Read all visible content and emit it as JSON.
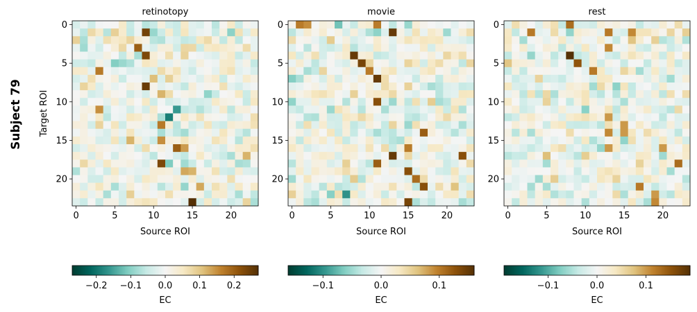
{
  "figure": {
    "subject_label": "Subject 79"
  },
  "colormap": {
    "name": "BrBG_r",
    "stops": [
      "#003c30",
      "#01665e",
      "#35978f",
      "#80cdc1",
      "#c7eae5",
      "#f5f5f5",
      "#f6e8c3",
      "#dfc27d",
      "#bf812d",
      "#8c510a",
      "#543005"
    ]
  },
  "chart_data": [
    {
      "type": "heatmap",
      "title": "retinotopy",
      "xlabel": "Source ROI",
      "ylabel": "Target ROI",
      "n": 24,
      "x_ticks": [
        0,
        5,
        10,
        15,
        20
      ],
      "y_ticks": [
        0,
        5,
        10,
        15,
        20
      ],
      "vmin": -0.27,
      "vmax": 0.27,
      "colorbar": {
        "label": "EC",
        "ticks": [
          -0.2,
          -0.1,
          0.0,
          0.1,
          0.2
        ],
        "tick_labels": [
          "−0.2",
          "−0.1",
          "0.0",
          "0.1",
          "0.2"
        ]
      },
      "strong_cells": [
        [
          1,
          9,
          0.24
        ],
        [
          3,
          8,
          0.2
        ],
        [
          4,
          9,
          0.23
        ],
        [
          6,
          3,
          0.17
        ],
        [
          7,
          10,
          0.11
        ],
        [
          8,
          9,
          0.25
        ],
        [
          9,
          11,
          0.12
        ],
        [
          11,
          3,
          0.15
        ],
        [
          11,
          13,
          -0.16
        ],
        [
          12,
          12,
          -0.19
        ],
        [
          13,
          11,
          0.17
        ],
        [
          15,
          7,
          0.12
        ],
        [
          15,
          11,
          0.15
        ],
        [
          16,
          13,
          0.2
        ],
        [
          16,
          14,
          0.14
        ],
        [
          17,
          22,
          0.12
        ],
        [
          18,
          11,
          0.23
        ],
        [
          19,
          14,
          0.13
        ],
        [
          19,
          15,
          0.12
        ],
        [
          21,
          16,
          0.13
        ],
        [
          23,
          15,
          0.27
        ]
      ]
    },
    {
      "type": "heatmap",
      "title": "movie",
      "xlabel": "Source ROI",
      "ylabel": "",
      "n": 24,
      "x_ticks": [
        0,
        5,
        10,
        15,
        20
      ],
      "y_ticks": [
        0,
        5,
        10,
        15,
        20
      ],
      "vmin": -0.16,
      "vmax": 0.16,
      "colorbar": {
        "label": "EC",
        "ticks": [
          -0.1,
          0.0,
          0.1
        ],
        "tick_labels": [
          "−0.1",
          "0.0",
          "0.1"
        ]
      },
      "strong_cells": [
        [
          0,
          1,
          0.1
        ],
        [
          0,
          2,
          0.09
        ],
        [
          0,
          6,
          -0.07
        ],
        [
          0,
          11,
          0.1
        ],
        [
          1,
          13,
          0.15
        ],
        [
          4,
          8,
          0.15
        ],
        [
          5,
          9,
          0.14
        ],
        [
          6,
          10,
          0.1
        ],
        [
          7,
          11,
          0.15
        ],
        [
          10,
          11,
          0.13
        ],
        [
          14,
          17,
          0.12
        ],
        [
          16,
          15,
          0.1
        ],
        [
          17,
          13,
          0.15
        ],
        [
          17,
          22,
          0.13
        ],
        [
          18,
          11,
          0.12
        ],
        [
          19,
          15,
          0.13
        ],
        [
          20,
          16,
          0.11
        ],
        [
          21,
          17,
          0.13
        ],
        [
          22,
          7,
          -0.1
        ],
        [
          23,
          15,
          0.14
        ]
      ]
    },
    {
      "type": "heatmap",
      "title": "rest",
      "xlabel": "Source ROI",
      "ylabel": "",
      "n": 24,
      "x_ticks": [
        0,
        5,
        10,
        15,
        20
      ],
      "y_ticks": [
        0,
        5,
        10,
        15,
        20
      ],
      "vmin": -0.19,
      "vmax": 0.19,
      "colorbar": {
        "label": "EC",
        "ticks": [
          -0.1,
          0.0,
          0.1
        ],
        "tick_labels": [
          "−0.1",
          "0.0",
          "0.1"
        ]
      },
      "strong_cells": [
        [
          0,
          8,
          0.13
        ],
        [
          1,
          3,
          0.12
        ],
        [
          1,
          13,
          0.12
        ],
        [
          1,
          16,
          0.11
        ],
        [
          3,
          13,
          0.11
        ],
        [
          4,
          8,
          0.19
        ],
        [
          5,
          9,
          0.15
        ],
        [
          6,
          11,
          0.12
        ],
        [
          12,
          13,
          0.1
        ],
        [
          13,
          15,
          0.1
        ],
        [
          14,
          13,
          0.11
        ],
        [
          14,
          15,
          0.1
        ],
        [
          16,
          13,
          0.1
        ],
        [
          16,
          20,
          0.1
        ],
        [
          18,
          22,
          0.13
        ],
        [
          21,
          17,
          0.12
        ],
        [
          22,
          19,
          0.1
        ],
        [
          23,
          19,
          0.11
        ]
      ]
    }
  ]
}
